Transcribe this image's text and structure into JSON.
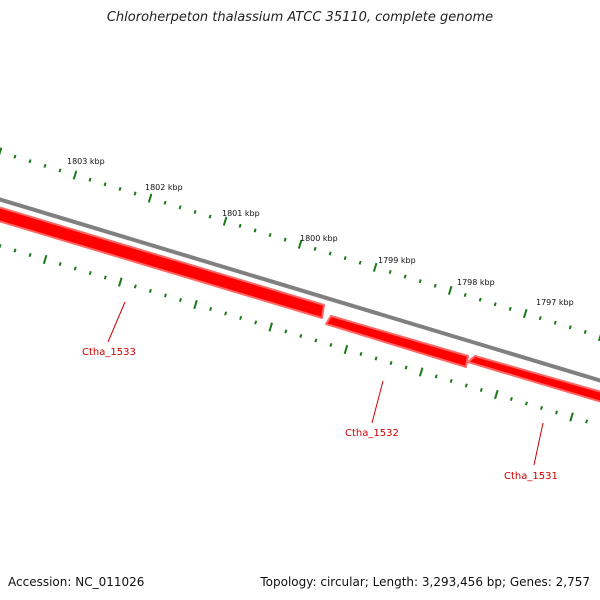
{
  "title": "Chloroherpeton thalassium ATCC 35110, complete genome",
  "accession": "Accession: NC_011026",
  "summary": "Topology: circular; Length: 3,293,456 bp; Genes: 2,757",
  "colors": {
    "backbone": "#808080",
    "gene_fill": "#ff0000",
    "gene_outline": "#ff6666",
    "tick": "#1a7a1a",
    "gene_label": "#cc0000"
  },
  "kbp_labels": [
    "1803 kbp",
    "1802 kbp",
    "1801 kbp",
    "1800 kbp",
    "1799 kbp",
    "1798 kbp",
    "1797 kbp"
  ],
  "genes": [
    {
      "name": "Ctha_1533",
      "strand": "minus"
    },
    {
      "name": "Ctha_1532",
      "strand": "minus"
    },
    {
      "name": "Ctha_1531",
      "strand": "minus"
    }
  ]
}
